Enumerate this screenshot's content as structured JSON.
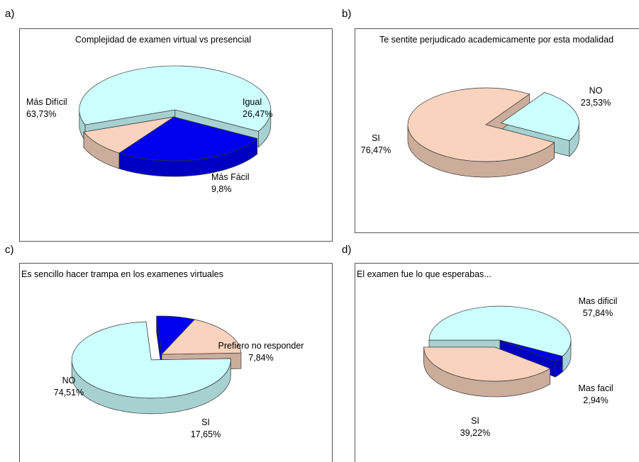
{
  "colors": {
    "light_cyan": "#ccffff",
    "peach": "#f9d3bd",
    "blue": "#0000ee",
    "outline": "#333333",
    "frame": "#555555"
  },
  "chart_data": [
    {
      "id": "a",
      "type": "pie",
      "letter": "a)",
      "title": "Complejidad de examen virtual vs presencial",
      "three_d": true,
      "slices": [
        {
          "label": "Más Difícil",
          "value_label": "63,73%",
          "value": 63.73,
          "color": "#ccffff",
          "exploded": true
        },
        {
          "label": "Igual",
          "value_label": "26,47%",
          "value": 26.47,
          "color": "#0000ee"
        },
        {
          "label": "Más Fácil",
          "value_label": "9,8%",
          "value": 9.8,
          "color": "#f9d3bd"
        }
      ]
    },
    {
      "id": "b",
      "type": "pie",
      "letter": "b)",
      "title": "Te sentite perjudicado academicamente por esta modalidad",
      "three_d": true,
      "slices": [
        {
          "label": "NO",
          "value_label": "23,53%",
          "value": 23.53,
          "color": "#ccffff",
          "exploded": true
        },
        {
          "label": "SI",
          "value_label": "76,47%",
          "value": 76.47,
          "color": "#f9d3bd"
        }
      ]
    },
    {
      "id": "c",
      "type": "pie",
      "letter": "c)",
      "title": "Es sencillo hacer trampa en los examenes virtuales",
      "three_d": true,
      "slices": [
        {
          "label": "NO",
          "value_label": "74,51%",
          "value": 74.51,
          "color": "#ccffff",
          "exploded": true
        },
        {
          "label": "Prefiero no responder",
          "value_label": "7,84%",
          "value": 7.84,
          "color": "#0000ee"
        },
        {
          "label": "SI",
          "value_label": "17,65%",
          "value": 17.65,
          "color": "#f9d3bd"
        }
      ]
    },
    {
      "id": "d",
      "type": "pie",
      "letter": "d)",
      "title": "El examen fue lo que esperabas...",
      "three_d": true,
      "slices": [
        {
          "label": "Mas dificil",
          "value_label": "57,84%",
          "value": 57.84,
          "color": "#ccffff"
        },
        {
          "label": "Mas facil",
          "value_label": "2,94%",
          "value": 2.94,
          "color": "#0000ee"
        },
        {
          "label": "SI",
          "value_label": "39,22%",
          "value": 39.22,
          "color": "#f9d3bd",
          "exploded": true
        }
      ]
    }
  ]
}
